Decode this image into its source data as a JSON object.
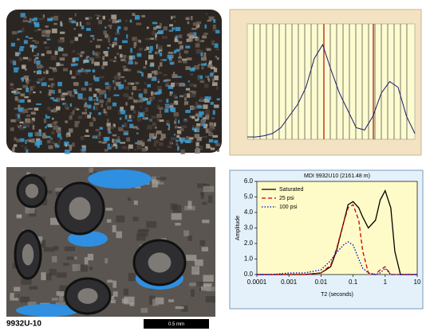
{
  "chart_data": [
    {
      "type": "line",
      "x": [
        0,
        2.5,
        5,
        7.5,
        10,
        12.5,
        15,
        17.5,
        20,
        22.5,
        25,
        27.5,
        30,
        32.5,
        35,
        37.5,
        40,
        42.5,
        45,
        47.5,
        50
      ],
      "xlim": [
        0,
        50
      ],
      "ylim": [
        0,
        1
      ],
      "series": [
        {
          "color": "#1a1a6e",
          "values": [
            0.02,
            0.02,
            0.03,
            0.05,
            0.1,
            0.2,
            0.3,
            0.45,
            0.7,
            0.82,
            0.6,
            0.4,
            0.25,
            0.1,
            0.08,
            0.2,
            0.4,
            0.5,
            0.45,
            0.2,
            0.05
          ]
        }
      ]
    },
    {
      "type": "line",
      "title": "MDI 9932U10 (2161.48 m)",
      "x_label": "T2 (seconds)",
      "y_label": "Amplitude",
      "log_x": true,
      "x": [
        0.0001,
        0.0003,
        0.001,
        0.003,
        0.01,
        0.02,
        0.03,
        0.05,
        0.07,
        0.1,
        0.15,
        0.2,
        0.3,
        0.5,
        0.7,
        1,
        1.5,
        2,
        3,
        5,
        10
      ],
      "xlim": [
        0.0001,
        10
      ],
      "xticks": [
        0.0001,
        0.001,
        0.01,
        0.1,
        1,
        10
      ],
      "ylim": [
        0,
        6
      ],
      "yticks": [
        {
          "value": 0,
          "label": "0.0"
        },
        {
          "value": 1,
          "label": "1.0"
        },
        {
          "value": 2,
          "label": "2.0"
        },
        {
          "value": 3,
          "label": "3.0"
        },
        {
          "value": 4,
          "label": "4.0"
        },
        {
          "value": 5,
          "label": "5.0"
        },
        {
          "value": 6,
          "label": "6.0"
        }
      ],
      "legend": "top-left",
      "series": [
        {
          "name": "Saturated",
          "color": "#000000",
          "dash": "solid",
          "values": [
            0,
            0,
            0,
            0,
            0.1,
            0.5,
            1.5,
            3.3,
            4.5,
            4.7,
            4.3,
            3.7,
            3.0,
            3.5,
            4.8,
            5.4,
            4.3,
            1.5,
            0,
            0,
            0
          ]
        },
        {
          "name": "25 psi",
          "color": "#cc0000",
          "dash": "dashed",
          "values": [
            0,
            0,
            0,
            0,
            0.1,
            0.6,
            1.6,
            3.3,
            4.3,
            4.5,
            3.5,
            1.5,
            0.1,
            0,
            0.3,
            0.5,
            0,
            0,
            0,
            0,
            0
          ]
        },
        {
          "name": "100 psi",
          "color": "#0000cc",
          "dash": "dotted",
          "values": [
            0,
            0,
            0.1,
            0.1,
            0.3,
            0.9,
            1.4,
            1.9,
            2.1,
            1.9,
            1.0,
            0.4,
            0.1,
            0,
            0.1,
            0.4,
            0,
            0,
            0,
            0,
            0
          ]
        }
      ]
    }
  ],
  "photo_caption": "9932U-10",
  "scale_bar": "0.5 mm"
}
